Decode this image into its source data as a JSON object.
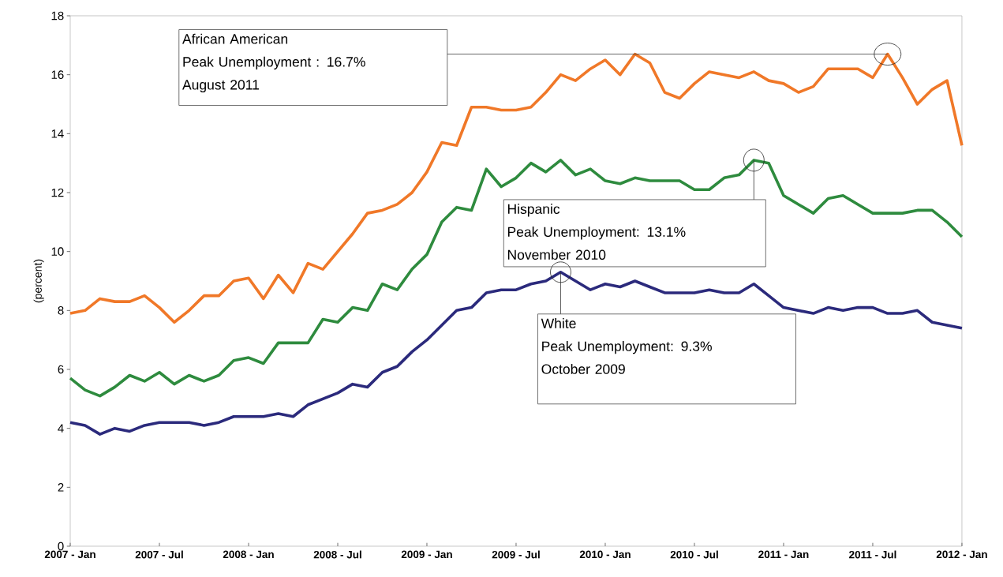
{
  "chart_data": {
    "type": "line",
    "ylabel": "(percent)",
    "x": [
      "2007-01",
      "2007-02",
      "2007-03",
      "2007-04",
      "2007-05",
      "2007-06",
      "2007-07",
      "2007-08",
      "2007-09",
      "2007-10",
      "2007-11",
      "2007-12",
      "2008-01",
      "2008-02",
      "2008-03",
      "2008-04",
      "2008-05",
      "2008-06",
      "2008-07",
      "2008-08",
      "2008-09",
      "2008-10",
      "2008-11",
      "2008-12",
      "2009-01",
      "2009-02",
      "2009-03",
      "2009-04",
      "2009-05",
      "2009-06",
      "2009-07",
      "2009-08",
      "2009-09",
      "2009-10",
      "2009-11",
      "2009-12",
      "2010-01",
      "2010-02",
      "2010-03",
      "2010-04",
      "2010-05",
      "2010-06",
      "2010-07",
      "2010-08",
      "2010-09",
      "2010-10",
      "2010-11",
      "2010-12",
      "2011-01",
      "2011-02",
      "2011-03",
      "2011-04",
      "2011-05",
      "2011-06",
      "2011-07",
      "2011-08",
      "2011-09",
      "2011-10",
      "2011-11",
      "2011-12",
      "2012-01"
    ],
    "xlim": [
      "2007-01",
      "2012-01"
    ],
    "xticks": [
      {
        "value": "2007-01",
        "label": "2007 - Jan"
      },
      {
        "value": "2007-07",
        "label": "2007 - Jul"
      },
      {
        "value": "2008-01",
        "label": "2008 - Jan"
      },
      {
        "value": "2008-07",
        "label": "2008 - Jul"
      },
      {
        "value": "2009-01",
        "label": "2009 - Jan"
      },
      {
        "value": "2009-07",
        "label": "2009 - Jul"
      },
      {
        "value": "2010-01",
        "label": "2010 - Jan"
      },
      {
        "value": "2010-07",
        "label": "2010 - Jul"
      },
      {
        "value": "2011-01",
        "label": "2011 - Jan"
      },
      {
        "value": "2011-07",
        "label": "2011 - Jul"
      },
      {
        "value": "2012-01",
        "label": "2012 - Jan"
      }
    ],
    "ylim": [
      0,
      18
    ],
    "yticks": [
      0,
      2,
      4,
      6,
      8,
      10,
      12,
      14,
      16,
      18
    ],
    "series": [
      {
        "color": "#f07828",
        "values": [
          7.9,
          8.0,
          8.4,
          8.3,
          8.3,
          8.5,
          8.1,
          7.6,
          8.0,
          8.5,
          8.5,
          9.0,
          9.1,
          8.4,
          9.2,
          8.6,
          9.6,
          9.4,
          10.0,
          10.6,
          11.3,
          11.4,
          11.6,
          12.0,
          12.7,
          13.7,
          13.6,
          14.9,
          14.9,
          14.8,
          14.8,
          14.9,
          15.4,
          16.0,
          15.8,
          16.2,
          16.5,
          16.0,
          16.7,
          16.4,
          15.4,
          15.2,
          15.7,
          16.1,
          16.0,
          15.9,
          16.1,
          15.8,
          15.7,
          15.4,
          15.6,
          16.2,
          16.2,
          16.2,
          15.9,
          16.7,
          15.9,
          15.0,
          15.5,
          15.8,
          13.6
        ]
      },
      {
        "color": "#2e8b3e",
        "values": [
          5.7,
          5.3,
          5.1,
          5.4,
          5.8,
          5.6,
          5.9,
          5.5,
          5.8,
          5.6,
          5.8,
          6.3,
          6.4,
          6.2,
          6.9,
          6.9,
          6.9,
          7.7,
          7.6,
          8.1,
          8.0,
          8.9,
          8.7,
          9.4,
          9.9,
          11.0,
          11.5,
          11.4,
          12.8,
          12.2,
          12.5,
          13.0,
          12.7,
          13.1,
          12.6,
          12.8,
          12.4,
          12.3,
          12.5,
          12.4,
          12.4,
          12.4,
          12.1,
          12.1,
          12.5,
          12.6,
          13.1,
          13.0,
          11.9,
          11.6,
          11.3,
          11.8,
          11.9,
          11.6,
          11.3,
          11.3,
          11.3,
          11.4,
          11.4,
          11.0,
          10.5
        ]
      },
      {
        "color": "#2b2a7c",
        "values": [
          4.2,
          4.1,
          3.8,
          4.0,
          3.9,
          4.1,
          4.2,
          4.2,
          4.2,
          4.1,
          4.2,
          4.4,
          4.4,
          4.4,
          4.5,
          4.4,
          4.8,
          5.0,
          5.2,
          5.5,
          5.4,
          5.9,
          6.1,
          6.6,
          7.0,
          7.5,
          8.0,
          8.1,
          8.6,
          8.7,
          8.7,
          8.9,
          9.0,
          9.3,
          9.0,
          8.7,
          8.9,
          8.8,
          9.0,
          8.8,
          8.6,
          8.6,
          8.6,
          8.7,
          8.6,
          8.6,
          8.9,
          8.5,
          8.1,
          8.0,
          7.9,
          8.1,
          8.0,
          8.1,
          8.1,
          7.9,
          7.9,
          8.0,
          7.6,
          7.5,
          7.4
        ]
      }
    ],
    "annotations": [
      "African American",
      "Peak Unemployment : 16.7%",
      "August 2011",
      "Hispanic",
      "Peak Unemployment: 13.1%",
      "November 2010",
      {
        "text": "White",
        "x": "2009-10",
        "y": 9.3
      },
      "Peak Unemployment: 9.3%",
      "October 2009"
    ]
  }
}
